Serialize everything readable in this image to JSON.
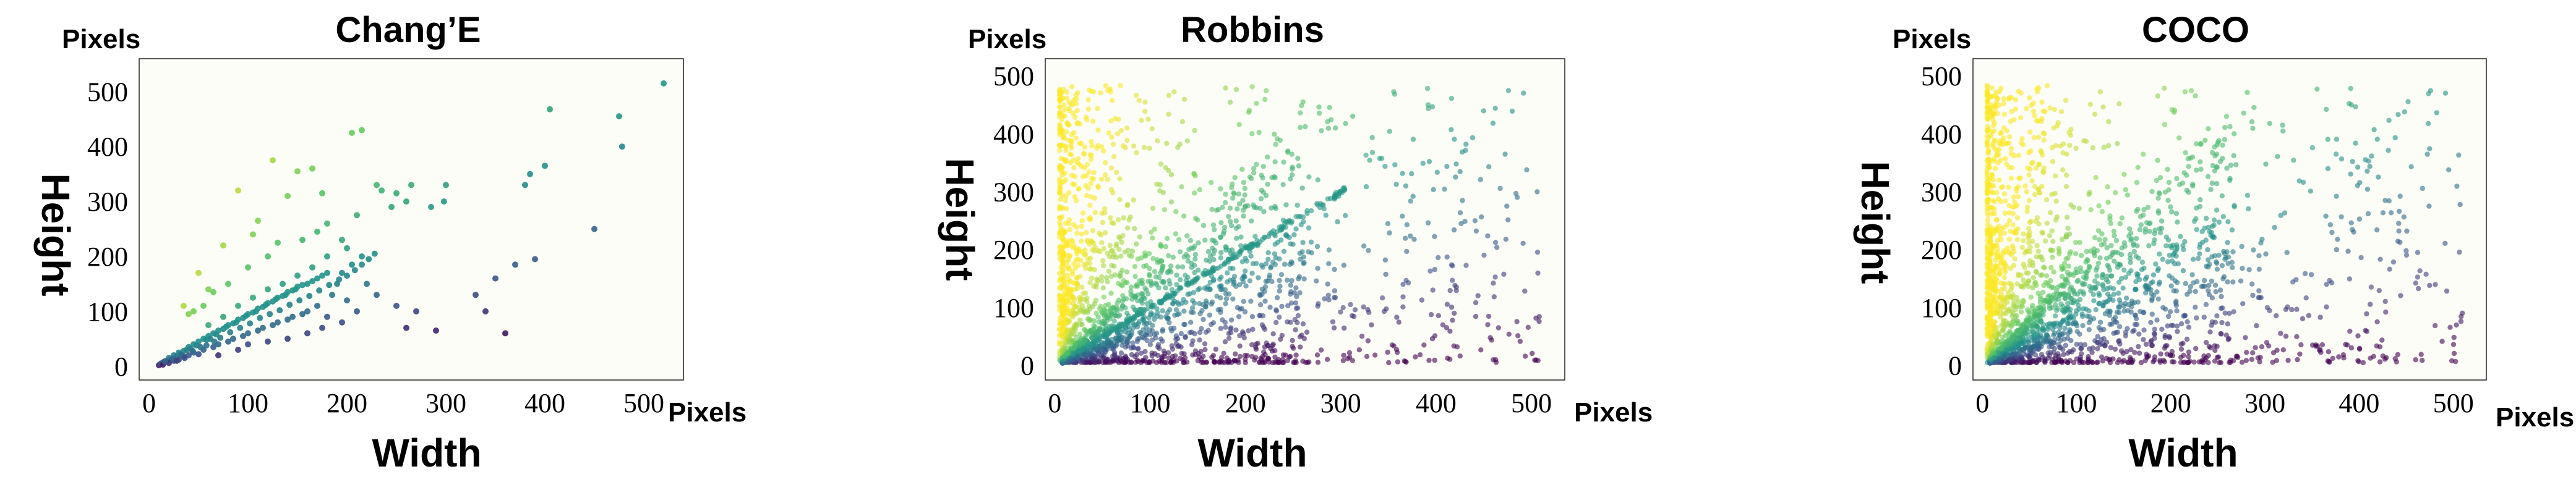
{
  "chart_data": [
    {
      "type": "scatter",
      "title": "Chang’E",
      "xlabel": "Width",
      "ylabel": "Height",
      "x_unit": "Pixels",
      "y_unit": "Pixels",
      "xlim": [
        -10,
        540
      ],
      "ylim": [
        -25,
        560
      ],
      "x_ticks": [
        0,
        100,
        200,
        300,
        400,
        500
      ],
      "y_ticks": [
        0,
        100,
        200,
        300,
        400,
        500
      ],
      "x_tick_labels": [
        "0",
        "100",
        "200",
        "300",
        "400",
        "500"
      ],
      "y_tick_labels": [
        "0",
        "100",
        "200",
        "300",
        "400",
        "500"
      ],
      "grid": false,
      "colormap": [
        "#440154",
        "#3b528b",
        "#21918c",
        "#5ec962",
        "#fde725"
      ],
      "points": [
        [
          520,
          515
        ],
        [
          475,
          455
        ],
        [
          478,
          400
        ],
        [
          405,
          468
        ],
        [
          400,
          365
        ],
        [
          385,
          350
        ],
        [
          380,
          330
        ],
        [
          300,
          330
        ],
        [
          298,
          300
        ],
        [
          285,
          290
        ],
        [
          265,
          330
        ],
        [
          260,
          300
        ],
        [
          250,
          315
        ],
        [
          245,
          290
        ],
        [
          235,
          320
        ],
        [
          230,
          330
        ],
        [
          215,
          430
        ],
        [
          205,
          425
        ],
        [
          210,
          275
        ],
        [
          200,
          215
        ],
        [
          195,
          230
        ],
        [
          180,
          260
        ],
        [
          175,
          315
        ],
        [
          170,
          245
        ],
        [
          165,
          360
        ],
        [
          150,
          355
        ],
        [
          140,
          310
        ],
        [
          125,
          375
        ],
        [
          130,
          225
        ],
        [
          110,
          265
        ],
        [
          105,
          240
        ],
        [
          100,
          180
        ],
        [
          90,
          320
        ],
        [
          80,
          150
        ],
        [
          75,
          220
        ],
        [
          65,
          135
        ],
        [
          55,
          110
        ],
        [
          50,
          170
        ],
        [
          45,
          100
        ],
        [
          40,
          95
        ],
        [
          35,
          110
        ],
        [
          60,
          140
        ],
        [
          120,
          200
        ],
        [
          155,
          230
        ],
        [
          180,
          200
        ],
        [
          195,
          170
        ],
        [
          205,
          185
        ],
        [
          215,
          200
        ],
        [
          220,
          150
        ],
        [
          230,
          130
        ],
        [
          200,
          120
        ],
        [
          210,
          100
        ],
        [
          195,
          80
        ],
        [
          175,
          70
        ],
        [
          160,
          60
        ],
        [
          140,
          50
        ],
        [
          120,
          45
        ],
        [
          100,
          40
        ],
        [
          90,
          30
        ],
        [
          70,
          20
        ],
        [
          180,
          90
        ],
        [
          250,
          110
        ],
        [
          270,
          100
        ],
        [
          260,
          70
        ],
        [
          290,
          65
        ],
        [
          330,
          130
        ],
        [
          350,
          160
        ],
        [
          370,
          185
        ],
        [
          340,
          100
        ],
        [
          360,
          60
        ],
        [
          450,
          250
        ],
        [
          390,
          195
        ],
        [
          10,
          2
        ],
        [
          12,
          5
        ],
        [
          15,
          8
        ],
        [
          18,
          10
        ],
        [
          20,
          15
        ],
        [
          22,
          12
        ],
        [
          25,
          20
        ],
        [
          28,
          18
        ],
        [
          30,
          25
        ],
        [
          32,
          22
        ],
        [
          35,
          28
        ],
        [
          38,
          30
        ],
        [
          40,
          35
        ],
        [
          42,
          32
        ],
        [
          45,
          40
        ],
        [
          48,
          38
        ],
        [
          50,
          45
        ],
        [
          55,
          50
        ],
        [
          58,
          48
        ],
        [
          60,
          55
        ],
        [
          62,
          50
        ],
        [
          65,
          60
        ],
        [
          68,
          58
        ],
        [
          70,
          65
        ],
        [
          75,
          68
        ],
        [
          78,
          72
        ],
        [
          80,
          75
        ],
        [
          85,
          78
        ],
        [
          88,
          80
        ],
        [
          90,
          85
        ],
        [
          95,
          88
        ],
        [
          98,
          92
        ],
        [
          100,
          95
        ],
        [
          105,
          98
        ],
        [
          108,
          100
        ],
        [
          110,
          105
        ],
        [
          115,
          108
        ],
        [
          118,
          112
        ],
        [
          120,
          115
        ],
        [
          125,
          118
        ],
        [
          128,
          122
        ],
        [
          130,
          125
        ],
        [
          135,
          128
        ],
        [
          138,
          130
        ],
        [
          140,
          135
        ],
        [
          145,
          138
        ],
        [
          148,
          140
        ],
        [
          150,
          145
        ],
        [
          155,
          148
        ],
        [
          160,
          150
        ],
        [
          165,
          155
        ],
        [
          170,
          160
        ],
        [
          175,
          165
        ],
        [
          180,
          170
        ],
        [
          40,
          20
        ],
        [
          55,
          30
        ],
        [
          70,
          40
        ],
        [
          85,
          50
        ],
        [
          100,
          60
        ],
        [
          115,
          70
        ],
        [
          130,
          80
        ],
        [
          145,
          90
        ],
        [
          160,
          100
        ],
        [
          60,
          75
        ],
        [
          75,
          90
        ],
        [
          90,
          110
        ],
        [
          105,
          125
        ],
        [
          120,
          140
        ],
        [
          135,
          150
        ],
        [
          150,
          165
        ],
        [
          165,
          180
        ],
        [
          20,
          6
        ],
        [
          25,
          10
        ],
        [
          30,
          12
        ],
        [
          35,
          18
        ],
        [
          45,
          25
        ],
        [
          50,
          22
        ],
        [
          65,
          35
        ],
        [
          80,
          45
        ],
        [
          95,
          55
        ],
        [
          110,
          65
        ],
        [
          125,
          75
        ],
        [
          140,
          85
        ],
        [
          155,
          95
        ],
        [
          170,
          110
        ],
        [
          185,
          130
        ],
        [
          190,
          150
        ],
        [
          14,
          3
        ],
        [
          16,
          9
        ],
        [
          24,
          14
        ],
        [
          28,
          10
        ],
        [
          33,
          20
        ],
        [
          36,
          15
        ],
        [
          44,
          28
        ],
        [
          52,
          35
        ],
        [
          58,
          38
        ],
        [
          66,
          45
        ],
        [
          72,
          52
        ],
        [
          82,
          62
        ],
        [
          92,
          70
        ],
        [
          102,
          78
        ],
        [
          112,
          88
        ],
        [
          122,
          95
        ],
        [
          132,
          102
        ],
        [
          142,
          112
        ],
        [
          152,
          120
        ],
        [
          162,
          128
        ],
        [
          172,
          138
        ],
        [
          182,
          148
        ],
        [
          192,
          158
        ],
        [
          200,
          165
        ],
        [
          208,
          175
        ],
        [
          215,
          185
        ],
        [
          222,
          195
        ],
        [
          228,
          205
        ]
      ]
    },
    {
      "type": "scatter",
      "title": "Robbins",
      "xlabel": "Width",
      "ylabel": "Height",
      "x_unit": "Pixels",
      "y_unit": "Pixels",
      "xlim": [
        -10,
        535
      ],
      "ylim": [
        -25,
        530
      ],
      "x_ticks": [
        0,
        100,
        200,
        300,
        400,
        500
      ],
      "y_ticks": [
        0,
        100,
        200,
        300,
        400,
        500
      ],
      "x_tick_labels": [
        "0",
        "100",
        "200",
        "300",
        "400",
        "500"
      ],
      "y_tick_labels": [
        "0",
        "100",
        "200",
        "300",
        "400",
        "500"
      ],
      "grid": false,
      "colormap": [
        "#440154",
        "#3b528b",
        "#21918c",
        "#5ec962",
        "#fde725"
      ]
    },
    {
      "type": "scatter",
      "title": "COCO",
      "xlabel": "Width",
      "ylabel": "Height",
      "x_unit": "Pixels",
      "y_unit": "Pixels",
      "xlim": [
        -10,
        535
      ],
      "ylim": [
        -25,
        530
      ],
      "x_ticks": [
        0,
        100,
        200,
        300,
        400,
        500
      ],
      "y_ticks": [
        0,
        100,
        200,
        300,
        400,
        500
      ],
      "x_tick_labels": [
        "0",
        "100",
        "200",
        "300",
        "400",
        "500"
      ],
      "y_tick_labels": [
        "0",
        "100",
        "200",
        "300",
        "400",
        "500"
      ],
      "grid": false,
      "colormap": [
        "#440154",
        "#3b528b",
        "#21918c",
        "#5ec962",
        "#fde725"
      ]
    }
  ]
}
